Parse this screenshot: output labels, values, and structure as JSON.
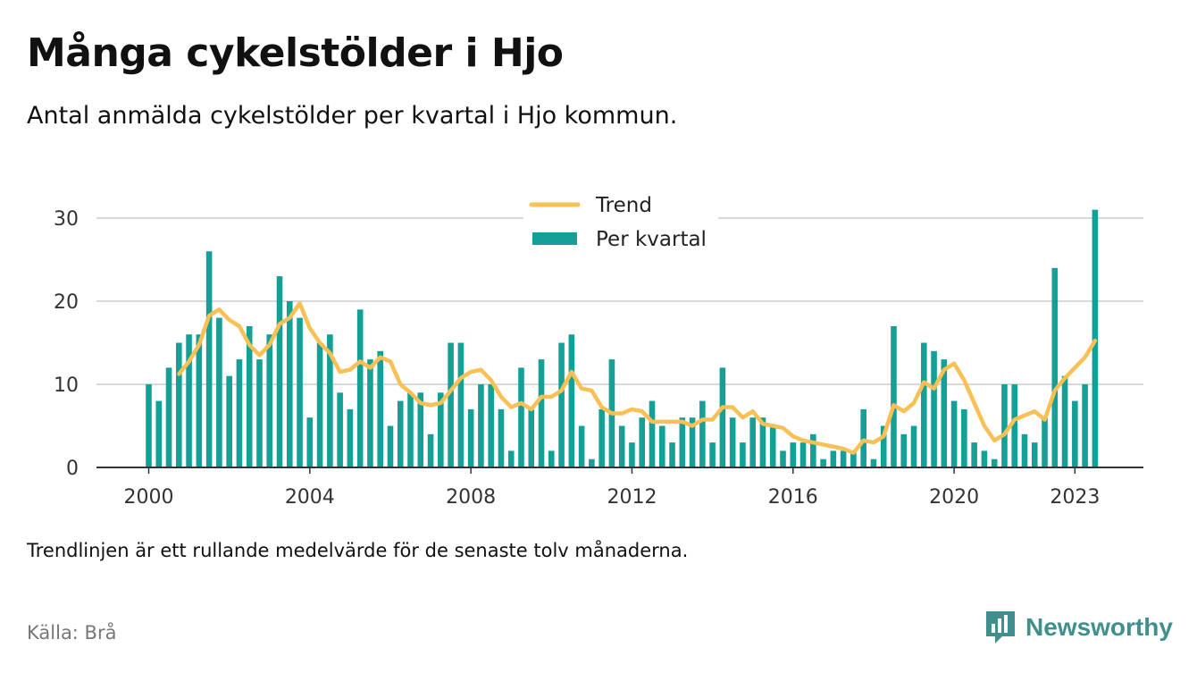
{
  "header": {
    "title": "Många cykelstölder i Hjo",
    "subtitle": "Antal anmälda cykelstölder per kvartal i Hjo kommun."
  },
  "footer": {
    "note": "Trendlinjen är ett rullande medelvärde för de senaste tolv månaderna.",
    "source": "Källa: Brå",
    "brand": "Newsworthy"
  },
  "colors": {
    "bar": "#14a096",
    "trend": "#f8c055",
    "grid": "#d9d9d9",
    "axis": "#333333",
    "brand": "#3f8f8c"
  },
  "chart_data": {
    "type": "bar",
    "x_start": "2000 Q1",
    "ylim": [
      0,
      33
    ],
    "yticks": [
      0,
      10,
      20,
      30
    ],
    "xticks": [
      "2000",
      "2004",
      "2008",
      "2012",
      "2016",
      "2020",
      "2023"
    ],
    "grid": "horizontal",
    "legend_position": "top-center",
    "series": [
      {
        "name": "Per kvartal",
        "type": "bar",
        "values": [
          10,
          8,
          12,
          15,
          16,
          16,
          26,
          18,
          11,
          13,
          17,
          13,
          16,
          23,
          20,
          18,
          6,
          15,
          16,
          9,
          7,
          19,
          13,
          14,
          5,
          8,
          9,
          9,
          4,
          9,
          15,
          15,
          7,
          10,
          10,
          7,
          2,
          12,
          7,
          13,
          2,
          15,
          16,
          5,
          1,
          7,
          13,
          5,
          3,
          6,
          8,
          5,
          3,
          6,
          6,
          8,
          3,
          12,
          6,
          3,
          6,
          6,
          5,
          2,
          3,
          3,
          4,
          1,
          2,
          2,
          2,
          7,
          1,
          5,
          17,
          4,
          5,
          15,
          14,
          13,
          8,
          7,
          3,
          2,
          1,
          10,
          10,
          4,
          3,
          6,
          24,
          11,
          8,
          10,
          31
        ]
      },
      {
        "name": "Trend",
        "type": "line",
        "values": [
          null,
          null,
          null,
          11.25,
          12.75,
          14.75,
          18.25,
          19,
          17.75,
          17,
          14.75,
          13.5,
          14.75,
          17.25,
          18,
          19.75,
          16.75,
          15,
          13.75,
          11.5,
          11.75,
          12.75,
          12,
          13.25,
          12.75,
          10,
          9,
          7.75,
          7.5,
          7.75,
          9.25,
          10.75,
          11.5,
          11.75,
          10.5,
          8.5,
          7.25,
          7.75,
          7,
          8.5,
          8.5,
          9.25,
          11.5,
          9.5,
          9.25,
          7.25,
          6.5,
          6.5,
          7,
          6.75,
          5.5,
          5.5,
          5.5,
          5.5,
          5,
          5.75,
          5.75,
          7.25,
          7.25,
          6,
          6.75,
          5.25,
          5,
          4.75,
          3.75,
          3.25,
          3,
          2.75,
          2.5,
          2.25,
          1.75,
          3.25,
          3,
          3.75,
          7.5,
          6.75,
          7.75,
          10.25,
          9.5,
          11.75,
          12.5,
          10.5,
          7.75,
          5,
          3.25,
          4,
          5.75,
          6.25,
          6.75,
          5.75,
          9.25,
          10.75,
          12,
          13.25,
          15.25
        ]
      }
    ]
  }
}
